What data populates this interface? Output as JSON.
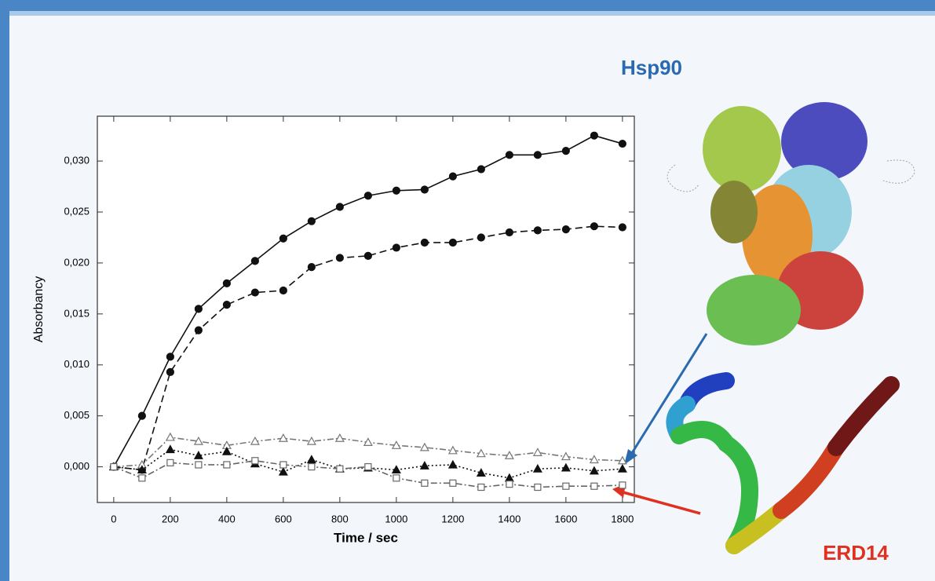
{
  "chart_data": {
    "type": "line",
    "xlabel": "Time / sec",
    "ylabel": "Absorbancy",
    "x": [
      0,
      100,
      200,
      300,
      400,
      500,
      600,
      700,
      800,
      900,
      1000,
      1100,
      1200,
      1300,
      1400,
      1500,
      1600,
      1700,
      1800
    ],
    "xlim": [
      -58,
      1842
    ],
    "xticks": [
      0,
      200,
      400,
      600,
      800,
      1000,
      1200,
      1400,
      1600,
      1800
    ],
    "ylim": [
      -0.0035,
      0.0344
    ],
    "yticks": [
      {
        "value": 0,
        "label": "0,000"
      },
      {
        "value": 0.005,
        "label": "0,005"
      },
      {
        "value": 0.01,
        "label": "0,010"
      },
      {
        "value": 0.015,
        "label": "0,015"
      },
      {
        "value": 0.02,
        "label": "0,020"
      },
      {
        "value": 0.025,
        "label": "0,025"
      },
      {
        "value": 0.03,
        "label": "0,030"
      }
    ],
    "series": [
      {
        "color": "#111111",
        "marker": "circle",
        "filled": true,
        "dash": "none",
        "values": [
          0,
          0.005,
          0.0108,
          0.0155,
          0.018,
          0.0202,
          0.0224,
          0.0241,
          0.0255,
          0.0266,
          0.0271,
          0.0272,
          0.0285,
          0.0292,
          0.0306,
          0.0306,
          0.031,
          0.0325,
          0.0317
        ]
      },
      {
        "color": "#111111",
        "marker": "circle",
        "filled": true,
        "dash": "9 5",
        "values": [
          0,
          -0.0003,
          0.0093,
          0.0134,
          0.0159,
          0.0171,
          0.0173,
          0.0196,
          0.0205,
          0.0207,
          0.0215,
          0.022,
          0.022,
          0.0225,
          0.023,
          0.0232,
          0.0233,
          0.0236,
          0.0235
        ]
      },
      {
        "color": "#777777",
        "marker": "triangle",
        "filled": false,
        "dash": "8 3 2 3",
        "values": [
          0,
          0.0002,
          0.0029,
          0.0025,
          0.0021,
          0.0025,
          0.0028,
          0.0025,
          0.0028,
          0.0024,
          0.0021,
          0.0019,
          0.0016,
          0.0013,
          0.0011,
          0.0014,
          0.001,
          0.0007,
          0.0006
        ]
      },
      {
        "color": "#111111",
        "marker": "triangle",
        "filled": true,
        "dash": "2 3",
        "values": [
          0,
          -0.0003,
          0.0017,
          0.0011,
          0.0015,
          0.0003,
          -0.0005,
          0.0007,
          -0.0002,
          -0.0001,
          -0.0003,
          0.0001,
          0.0002,
          -0.0006,
          -0.0011,
          -0.0002,
          -0.0001,
          -0.0004,
          -0.0002
        ]
      },
      {
        "color": "#666666",
        "marker": "square",
        "filled": false,
        "dash": "8 3 2 3",
        "values": [
          0,
          -0.0011,
          0.0004,
          0.0002,
          0.0002,
          0.0006,
          0.0002,
          0,
          -0.0002,
          0,
          -0.0011,
          -0.0016,
          -0.0016,
          -0.002,
          -0.0017,
          -0.002,
          -0.0019,
          -0.0019,
          -0.0018
        ]
      }
    ],
    "annotations": [
      {
        "text": "Hsp90",
        "color": "#2a6ab0"
      },
      {
        "text": "ERD14",
        "color": "#e03020"
      }
    ]
  }
}
